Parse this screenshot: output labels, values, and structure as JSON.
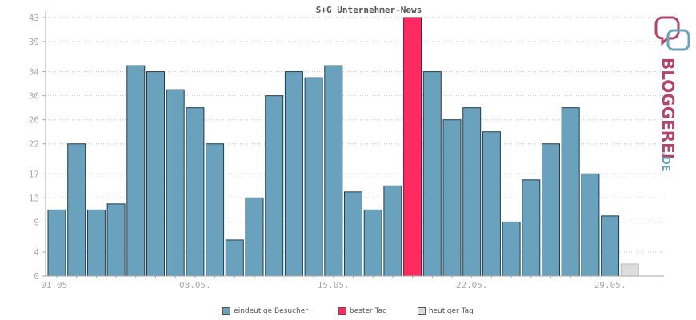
{
  "chart_data": {
    "type": "bar",
    "title": "S+G Unternehmer-News",
    "xlabel": "",
    "ylabel": "",
    "ylim": [
      0,
      43
    ],
    "y_ticks": [
      0,
      4,
      9,
      13,
      17,
      22,
      26,
      30,
      34,
      39,
      43
    ],
    "x_tick_labels": [
      "01.05.",
      "08.05.",
      "15.05.",
      "22.05.",
      "29.05."
    ],
    "grid": true,
    "legend_position": "bottom-center",
    "categories": [
      "01.05.",
      "02.05.",
      "03.05.",
      "04.05.",
      "05.05.",
      "06.05.",
      "07.05.",
      "08.05.",
      "09.05.",
      "10.05.",
      "11.05.",
      "12.05.",
      "13.05.",
      "14.05.",
      "15.05.",
      "16.05.",
      "17.05.",
      "18.05.",
      "19.05.",
      "20.05.",
      "21.05.",
      "22.05.",
      "23.05.",
      "24.05.",
      "25.05.",
      "26.05.",
      "27.05.",
      "28.05.",
      "29.05.",
      "30.05."
    ],
    "values": [
      11,
      22,
      11,
      12,
      35,
      34,
      31,
      28,
      22,
      6,
      13,
      30,
      34,
      33,
      35,
      14,
      11,
      15,
      43,
      34,
      26,
      28,
      24,
      9,
      16,
      22,
      28,
      17,
      10,
      2
    ],
    "highlight": {
      "best_day_index": 18,
      "today_index": 29
    },
    "colors": {
      "bar": "#6aa2bd",
      "best": "#ff2a5f",
      "today": "#dddddd",
      "bar_stroke": "#1f3d4a",
      "axis": "#aaaaaa",
      "grid": "#cccccc",
      "tick_text": "#aaaaaa"
    }
  },
  "legend": {
    "items": [
      {
        "label": "eindeutige Besucher",
        "color": "#6aa2bd"
      },
      {
        "label": "bester Tag",
        "color": "#ff2a5f"
      },
      {
        "label": "heutiger Tag",
        "color": "#dddddd"
      }
    ]
  },
  "logo": {
    "text_main": "BLOGGEREI",
    "text_suffix": ".DE",
    "color_main": "#b0466a",
    "color_suffix": "#6aa2bd",
    "icon": "bloggerei-speech-bubble-logo"
  }
}
